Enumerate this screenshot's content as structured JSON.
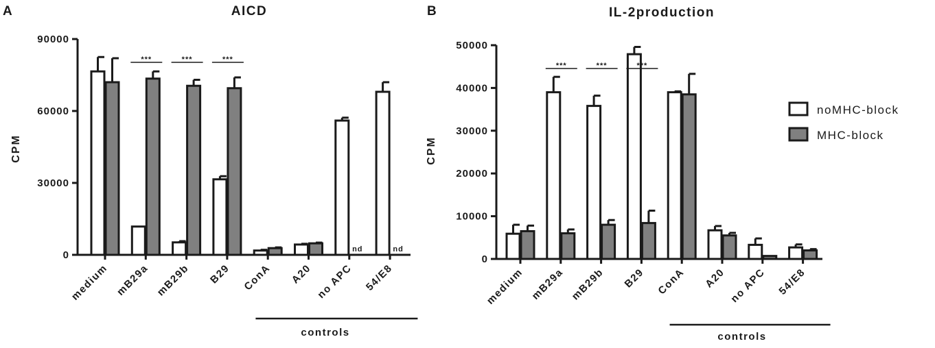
{
  "panels": [
    {
      "letter": "A"
    },
    {
      "letter": "B"
    }
  ],
  "legend": [
    {
      "label": "noMHC-block",
      "color": "#ffffff"
    },
    {
      "label": "MHC-block",
      "color": "#808080"
    }
  ],
  "group_label": "controls",
  "chart_data": [
    {
      "type": "bar",
      "title": "AICD",
      "ylabel": "CPM",
      "xlabel": "",
      "ylim": [
        0,
        90000
      ],
      "yticks": [
        "0",
        "30000",
        "60000",
        "90000"
      ],
      "categories": [
        "medium",
        "mB29a",
        "mB29b",
        "B29",
        "ConA",
        "A20",
        "no APC",
        "54/E8"
      ],
      "series": [
        {
          "name": "noMHC-block",
          "values": [
            76500,
            11800,
            5200,
            31500,
            1800,
            4300,
            56000,
            68000
          ],
          "errors": [
            6000,
            0,
            500,
            1300,
            300,
            300,
            1200,
            4000
          ]
        },
        {
          "name": "MHC-block",
          "values": [
            72000,
            73500,
            70500,
            69500,
            2800,
            4800,
            null,
            null
          ],
          "errors": [
            10000,
            3000,
            2500,
            4500,
            300,
            300,
            null,
            null
          ]
        }
      ],
      "significance": [
        {
          "category": "mB29a",
          "label": "***"
        },
        {
          "category": "mB29b",
          "label": "***"
        },
        {
          "category": "B29",
          "label": "***"
        }
      ],
      "not_determined": [
        {
          "category": "no APC",
          "label": "nd"
        },
        {
          "category": "54/E8",
          "label": "nd"
        }
      ],
      "group": {
        "label": "controls",
        "categories": [
          "ConA",
          "A20",
          "no APC",
          "54/E8"
        ]
      }
    },
    {
      "type": "bar",
      "title": "IL-2production",
      "ylabel": "CPM",
      "xlabel": "",
      "ylim": [
        0,
        50000
      ],
      "yticks": [
        "0",
        "10000",
        "20000",
        "30000",
        "40000",
        "50000"
      ],
      "categories": [
        "medium",
        "mB29a",
        "mB29b",
        "B29",
        "ConA",
        "A20",
        "no APC",
        "54/E8"
      ],
      "series": [
        {
          "name": "noMHC-block",
          "values": [
            5900,
            39000,
            35800,
            47900,
            39000,
            6700,
            3300,
            2700
          ],
          "errors": [
            2100,
            3600,
            2400,
            1700,
            200,
            1000,
            1500,
            700
          ]
        },
        {
          "name": "MHC-block",
          "values": [
            6500,
            6000,
            8000,
            8400,
            38500,
            5500,
            700,
            2000
          ],
          "errors": [
            1300,
            900,
            1100,
            2900,
            4800,
            600,
            0,
            300
          ]
        }
      ],
      "significance": [
        {
          "category": "mB29a",
          "label": "***"
        },
        {
          "category": "mB29b",
          "label": "***"
        },
        {
          "category": "B29",
          "label": "***"
        }
      ],
      "not_determined": [],
      "group": {
        "label": "controls",
        "categories": [
          "ConA",
          "A20",
          "no APC",
          "54/E8"
        ]
      }
    }
  ]
}
